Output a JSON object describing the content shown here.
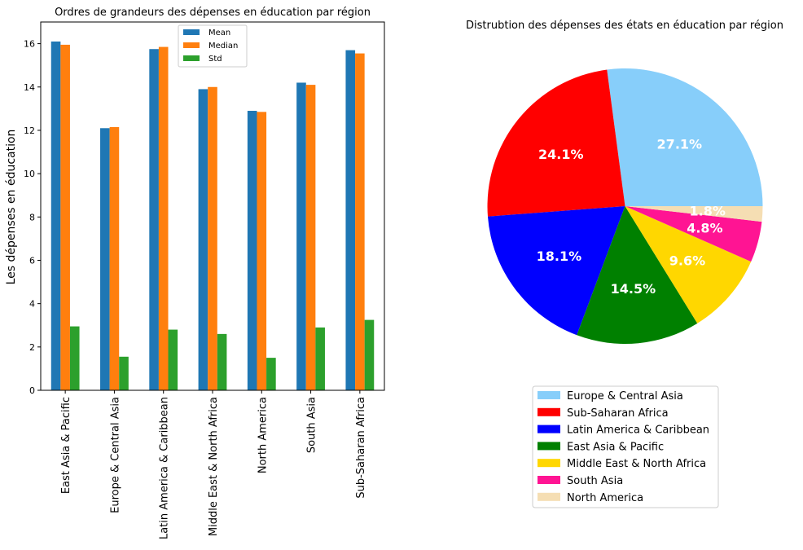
{
  "chart_data": [
    {
      "type": "bar",
      "title": "Ordres de grandeurs des dépenses en éducation par région",
      "xlabel": "",
      "ylabel": "Les dépenses en éducation",
      "ylim": [
        0,
        17
      ],
      "yticks": [
        0,
        2,
        4,
        6,
        8,
        10,
        12,
        14,
        16
      ],
      "grid": false,
      "legend_position": "top-center",
      "categories": [
        "East Asia & Pacific",
        "Europe & Central Asia",
        "Latin America & Caribbean",
        "Middle East & North Africa",
        "North America",
        "South Asia",
        "Sub-Saharan Africa"
      ],
      "series": [
        {
          "name": "Mean",
          "color": "#1f77b4",
          "values": [
            16.1,
            12.1,
            15.75,
            13.9,
            12.9,
            14.2,
            15.7
          ]
        },
        {
          "name": "Median",
          "color": "#ff7f0e",
          "values": [
            15.95,
            12.15,
            15.85,
            14.0,
            12.85,
            14.1,
            15.55
          ]
        },
        {
          "name": "Std",
          "color": "#2ca02c",
          "values": [
            2.95,
            1.55,
            2.8,
            2.6,
            1.5,
            2.9,
            3.25
          ]
        }
      ]
    },
    {
      "type": "pie",
      "title": "Distrubtion des dépenses des états en éducation par région",
      "legend_position": "bottom-center",
      "labels": [
        "Europe & Central Asia",
        "Sub-Saharan Africa",
        "Latin America & Caribbean",
        "East Asia & Pacific",
        "Middle East & North Africa",
        "South Asia",
        "North America"
      ],
      "values": [
        27.1,
        24.1,
        18.1,
        14.5,
        9.6,
        4.8,
        1.8
      ],
      "value_labels": [
        "27.1%",
        "24.1%",
        "18.1%",
        "14.5%",
        "9.6%",
        "4.8%",
        "1.8%"
      ],
      "colors": [
        "#87cefa",
        "#ff0000",
        "#0000ff",
        "#008000",
        "#ffd700",
        "#ff1493",
        "#f5deb3"
      ]
    }
  ]
}
